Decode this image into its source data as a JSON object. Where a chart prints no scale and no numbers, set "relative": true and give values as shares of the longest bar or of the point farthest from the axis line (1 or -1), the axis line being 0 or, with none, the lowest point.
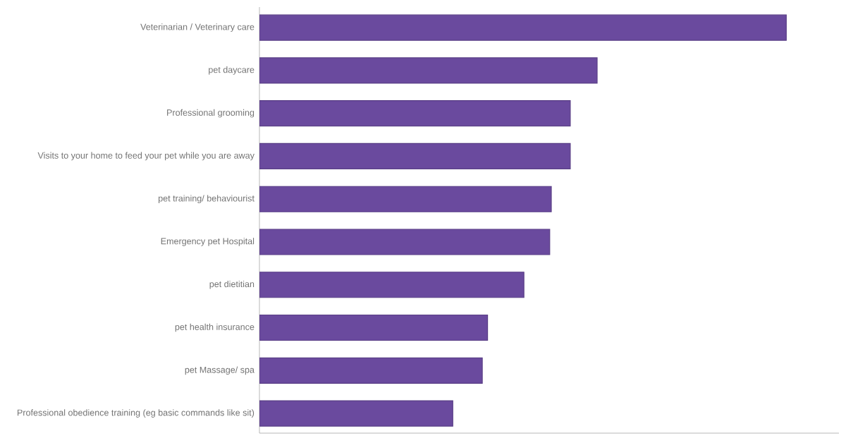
{
  "chart_data": {
    "type": "bar",
    "orientation": "horizontal",
    "relative": true,
    "color": "#6a4a9e",
    "categories": [
      "Veterinarian / Veterinary care",
      "pet daycare",
      "Professional grooming",
      "Visits to your home to feed your pet while you are away",
      "pet training/ behaviourist",
      "Emergency pet Hospital",
      "pet dietitian",
      "pet health insurance",
      "pet Massage/ spa",
      "Professional obedience training (eg basic commands like sit)"
    ],
    "values": [
      1,
      0.641,
      0.59,
      0.59,
      0.554,
      0.551,
      0.502,
      0.433,
      0.423,
      0.367
    ]
  }
}
